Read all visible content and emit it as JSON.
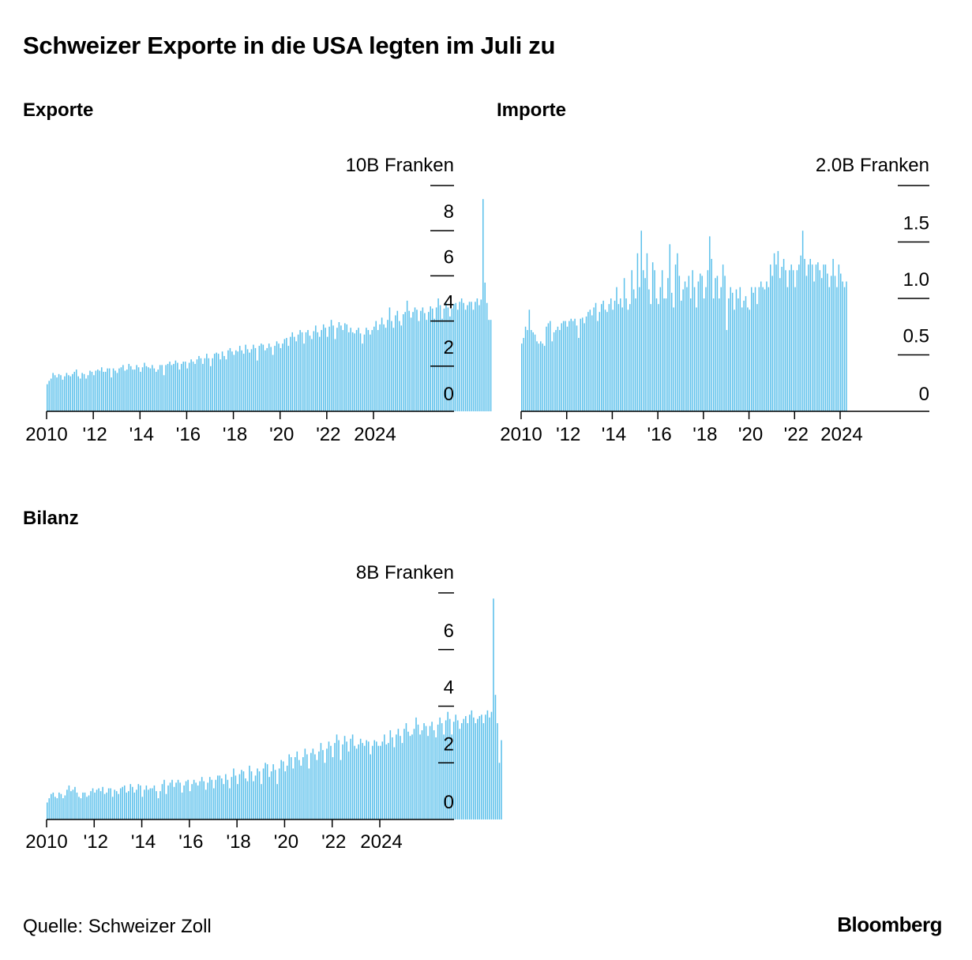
{
  "header": {
    "title": "Schweizer Exporte in die USA legten im Juli zu"
  },
  "footer": {
    "source": "Quelle: Schweizer Zoll",
    "logo": "Bloomberg"
  },
  "colors": {
    "bar": "#5BC0EB",
    "axis": "#000000",
    "text": "#000000"
  },
  "chart_data": [
    {
      "id": "exporte",
      "type": "bar",
      "title": "Exporte",
      "unit_label": "10B Franken",
      "ylim": [
        0,
        10
      ],
      "y_ticks": [
        0,
        2,
        4,
        6,
        8,
        10
      ],
      "y_tick_labels": [
        "0",
        "2",
        "4",
        "6",
        "8",
        ""
      ],
      "x_ticks": [
        2010,
        2012,
        2014,
        2016,
        2018,
        2020,
        2022,
        2024
      ],
      "x_tick_labels": [
        "2010",
        "'12",
        "'14",
        "'16",
        "'18",
        "'20",
        "'22",
        "2024"
      ],
      "start": "2010-01",
      "frequency": "monthly",
      "values": [
        1.2,
        1.35,
        1.45,
        1.7,
        1.6,
        1.5,
        1.65,
        1.6,
        1.4,
        1.55,
        1.7,
        1.6,
        1.55,
        1.65,
        1.75,
        1.85,
        1.55,
        1.45,
        1.7,
        1.65,
        1.45,
        1.6,
        1.8,
        1.75,
        1.6,
        1.8,
        1.85,
        1.8,
        1.95,
        1.75,
        1.75,
        1.9,
        1.9,
        1.5,
        1.9,
        1.8,
        1.7,
        1.9,
        1.95,
        2.05,
        1.8,
        1.85,
        2.1,
        2.0,
        1.85,
        1.85,
        2.05,
        1.95,
        1.75,
        1.95,
        2.15,
        2.0,
        1.95,
        1.9,
        2.05,
        1.9,
        1.75,
        1.85,
        2.05,
        2.05,
        1.6,
        2.05,
        2.1,
        2.2,
        2.05,
        2.1,
        2.25,
        2.15,
        1.85,
        2.1,
        2.2,
        2.2,
        1.9,
        2.15,
        2.3,
        2.2,
        2.1,
        2.3,
        2.45,
        2.35,
        2.1,
        2.35,
        2.55,
        2.35,
        2.0,
        2.35,
        2.55,
        2.6,
        2.55,
        2.3,
        2.65,
        2.45,
        2.3,
        2.7,
        2.8,
        2.65,
        2.5,
        2.7,
        2.65,
        2.9,
        2.7,
        2.55,
        2.95,
        2.75,
        2.6,
        2.75,
        2.95,
        2.8,
        2.25,
        2.9,
        3.0,
        2.95,
        2.7,
        2.8,
        3.0,
        2.85,
        2.5,
        2.9,
        3.1,
        3.0,
        2.8,
        3.0,
        3.2,
        3.25,
        2.9,
        3.3,
        3.5,
        3.3,
        3.1,
        3.4,
        3.6,
        3.5,
        3.0,
        3.5,
        3.6,
        3.35,
        3.2,
        3.55,
        3.8,
        3.5,
        3.3,
        3.6,
        3.85,
        3.7,
        3.3,
        3.75,
        4.05,
        3.8,
        3.2,
        3.7,
        3.95,
        3.8,
        3.6,
        3.9,
        3.85,
        3.5,
        3.7,
        3.5,
        3.45,
        3.6,
        3.7,
        3.45,
        3.0,
        3.4,
        3.7,
        3.6,
        3.4,
        3.6,
        3.75,
        4.0,
        3.6,
        3.85,
        4.15,
        3.85,
        3.7,
        4.05,
        4.6,
        4.0,
        3.7,
        4.25,
        4.45,
        4.0,
        3.8,
        4.3,
        4.4,
        4.9,
        4.45,
        4.15,
        4.4,
        4.6,
        4.5,
        4.0,
        4.45,
        4.6,
        4.35,
        4.05,
        4.4,
        4.65,
        4.55,
        4.1,
        4.6,
        5.0,
        4.7,
        4.1,
        4.55,
        4.8,
        4.6,
        4.2,
        4.55,
        4.75,
        4.8,
        4.5,
        4.85,
        5.0,
        4.8,
        4.5,
        4.7,
        4.85,
        4.85,
        4.5,
        4.85,
        5.0,
        4.7,
        4.95,
        9.4,
        5.7,
        4.8,
        4.05,
        4.05
      ]
    },
    {
      "id": "importe",
      "type": "bar",
      "title": "Importe",
      "unit_label": "2.0B Franken",
      "ylim": [
        0,
        2.0
      ],
      "y_ticks": [
        0,
        0.5,
        1.0,
        1.5,
        2.0
      ],
      "y_tick_labels": [
        "0",
        "0.5",
        "1.0",
        "1.5",
        ""
      ],
      "x_ticks": [
        2010,
        2012,
        2014,
        2016,
        2018,
        2020,
        2022,
        2024
      ],
      "x_tick_labels": [
        "2010",
        "'12",
        "'14",
        "'16",
        "'18",
        "'20",
        "'22",
        "2024"
      ],
      "start": "2010-01",
      "frequency": "monthly",
      "values": [
        0.6,
        0.65,
        0.75,
        0.72,
        0.9,
        0.72,
        0.7,
        0.68,
        0.62,
        0.6,
        0.62,
        0.6,
        0.58,
        0.75,
        0.78,
        0.8,
        0.62,
        0.7,
        0.72,
        0.75,
        0.72,
        0.78,
        0.8,
        0.8,
        0.75,
        0.8,
        0.82,
        0.8,
        0.82,
        0.76,
        0.65,
        0.82,
        0.83,
        0.78,
        0.84,
        0.88,
        0.9,
        0.85,
        0.92,
        0.96,
        0.8,
        0.88,
        0.95,
        0.98,
        0.9,
        0.88,
        0.95,
        1.0,
        0.9,
        0.98,
        1.1,
        0.95,
        1.0,
        0.92,
        1.18,
        1.0,
        0.9,
        0.95,
        1.25,
        1.08,
        1.0,
        1.4,
        1.1,
        1.6,
        1.25,
        1.18,
        1.4,
        1.08,
        0.95,
        1.32,
        1.25,
        1.0,
        0.95,
        1.1,
        1.25,
        1.0,
        1.0,
        1.18,
        1.48,
        1.05,
        0.92,
        1.3,
        1.4,
        1.2,
        0.98,
        1.08,
        1.15,
        1.1,
        1.2,
        1.0,
        1.25,
        1.1,
        0.92,
        1.15,
        1.22,
        1.2,
        1.0,
        1.1,
        1.25,
        1.55,
        1.35,
        1.0,
        1.18,
        1.2,
        1.0,
        1.1,
        1.3,
        1.2,
        0.72,
        1.0,
        1.1,
        1.05,
        0.9,
        1.08,
        1.0,
        1.1,
        0.92,
        0.98,
        1.02,
        0.92,
        0.9,
        1.1,
        1.05,
        1.1,
        0.95,
        1.1,
        1.15,
        1.1,
        1.08,
        1.15,
        1.1,
        1.3,
        1.2,
        1.4,
        1.3,
        1.42,
        1.18,
        1.28,
        1.35,
        1.25,
        1.1,
        1.25,
        1.3,
        1.25,
        1.1,
        1.25,
        1.3,
        1.38,
        1.6,
        1.35,
        1.2,
        1.3,
        1.35,
        1.3,
        1.15,
        1.3,
        1.32,
        1.25,
        1.18,
        1.3,
        1.3,
        1.22,
        1.1,
        1.2,
        1.35,
        1.2,
        1.1,
        1.3,
        1.22,
        1.15,
        1.1,
        1.15
      ]
    },
    {
      "id": "bilanz",
      "type": "bar",
      "title": "Bilanz",
      "unit_label": "8B Franken",
      "ylim": [
        0,
        8
      ],
      "y_ticks": [
        0,
        2,
        4,
        6,
        8
      ],
      "y_tick_labels": [
        "0",
        "2",
        "4",
        "6",
        ""
      ],
      "x_ticks": [
        2010,
        2012,
        2014,
        2016,
        2018,
        2020,
        2022,
        2024
      ],
      "x_tick_labels": [
        "2010",
        "'12",
        "'14",
        "'16",
        "'18",
        "'20",
        "'22",
        "2024"
      ],
      "start": "2010-01",
      "frequency": "monthly",
      "values": [
        0.6,
        0.75,
        0.9,
        0.95,
        0.8,
        0.75,
        0.95,
        0.9,
        0.75,
        0.85,
        1.05,
        1.2,
        1.0,
        1.05,
        1.15,
        0.95,
        0.8,
        0.75,
        0.95,
        0.95,
        0.8,
        0.85,
        1.0,
        1.1,
        0.95,
        1.05,
        1.1,
        1.0,
        1.15,
        0.9,
        0.95,
        1.1,
        1.1,
        0.8,
        1.05,
        1.0,
        0.9,
        1.1,
        1.15,
        1.2,
        0.95,
        1.0,
        1.25,
        1.15,
        0.95,
        1.05,
        1.25,
        1.2,
        0.8,
        1.05,
        1.2,
        1.05,
        1.1,
        1.1,
        1.2,
        1.0,
        0.75,
        1.0,
        1.25,
        1.4,
        0.9,
        1.2,
        1.3,
        1.4,
        1.15,
        1.3,
        1.4,
        1.3,
        0.95,
        1.2,
        1.35,
        1.4,
        1.0,
        1.25,
        1.4,
        1.3,
        1.2,
        1.35,
        1.5,
        1.35,
        1.05,
        1.3,
        1.5,
        1.4,
        1.1,
        1.4,
        1.55,
        1.55,
        1.45,
        1.25,
        1.6,
        1.4,
        1.1,
        1.5,
        1.8,
        1.55,
        1.25,
        1.6,
        1.75,
        1.7,
        1.45,
        1.35,
        1.9,
        1.7,
        1.35,
        1.55,
        1.8,
        1.7,
        1.25,
        1.8,
        2.0,
        1.95,
        1.5,
        1.7,
        1.95,
        1.75,
        1.25,
        1.8,
        2.1,
        2.05,
        1.7,
        1.9,
        2.3,
        2.2,
        1.8,
        2.2,
        2.4,
        2.1,
        1.9,
        2.2,
        2.5,
        2.3,
        1.8,
        2.35,
        2.5,
        2.3,
        2.1,
        2.4,
        2.7,
        2.45,
        2.0,
        2.5,
        2.75,
        2.6,
        2.2,
        2.7,
        3.0,
        2.8,
        2.1,
        2.65,
        2.95,
        2.75,
        2.4,
        2.85,
        3.0,
        2.6,
        2.5,
        2.65,
        2.85,
        2.7,
        2.6,
        2.8,
        2.75,
        2.3,
        2.6,
        2.8,
        2.75,
        2.6,
        2.6,
        2.75,
        3.0,
        2.65,
        2.7,
        3.15,
        2.9,
        2.55,
        3.0,
        3.2,
        2.95,
        2.7,
        3.2,
        3.4,
        3.1,
        2.95,
        3.0,
        3.2,
        3.6,
        3.35,
        3.0,
        3.15,
        3.4,
        3.3,
        2.95,
        3.3,
        3.45,
        3.15,
        2.9,
        3.35,
        3.6,
        3.4,
        3.0,
        3.5,
        3.8,
        3.55,
        3.0,
        3.45,
        3.7,
        3.5,
        3.2,
        3.4,
        3.55,
        3.65,
        3.4,
        3.7,
        3.85,
        3.6,
        3.4,
        3.55,
        3.65,
        3.7,
        3.4,
        3.7,
        3.85,
        3.6,
        3.8,
        7.8,
        4.4,
        3.4,
        2.0,
        2.8
      ]
    }
  ]
}
